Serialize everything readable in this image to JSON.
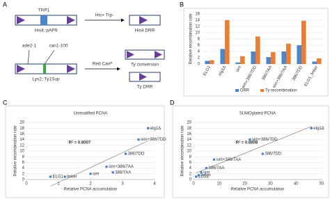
{
  "panel_labels": [
    "A",
    "B",
    "C",
    "D"
  ],
  "diagram": {
    "trp1": "TRP1",
    "his_arrow": "His+ Trp-",
    "his_construct": "His4::pAP9",
    "his_product": "His4 DRR",
    "ade": "ade2-1",
    "can": "can1-100",
    "red_arrow": "Red Canᴿ",
    "lys_construct": "Lys2::Ty1Sup",
    "ty_conversion": "Ty conversion",
    "ty_drr": "Ty DRR"
  },
  "chart_data": [
    {
      "type": "bar",
      "y_label": "Relative recombination rate",
      "categories": [
        "ELG1",
        "elg1Δ",
        "sim",
        "sim+386/7DD",
        "386/7AA",
        "sim+386/7AA",
        "386/7DD",
        "ELG1_linker"
      ],
      "series": [
        {
          "name": "DRR",
          "color": "#4a86c8",
          "values": [
            1,
            4.8,
            0.5,
            4,
            2.2,
            4,
            6,
            0.8
          ]
        },
        {
          "name": "Ty recombination",
          "color": "#ed7d31",
          "values": [
            1.2,
            14,
            2.5,
            8.8,
            3.8,
            6.5,
            13.8,
            1.8
          ]
        }
      ],
      "ylim": [
        0,
        16
      ],
      "yticks": [
        0,
        2,
        4,
        6,
        8,
        10,
        12,
        14,
        16
      ],
      "grid": true,
      "legend": "bottom"
    },
    {
      "type": "scatter",
      "title": "Unmodified PCNA",
      "annotation": "R² = 0.8007",
      "x_label": "Relative PCNA accumulation",
      "y_label": "Relative recombination rate",
      "color": "#4a86c8",
      "x": [
        3.8,
        3.5,
        3.1,
        2.5,
        2.7,
        2.0,
        0.75,
        1.2
      ],
      "values": [
        18,
        14,
        9,
        4.5,
        2.5,
        2,
        1,
        1
      ],
      "labels": [
        "elg1Δ",
        "sim+386/7DD",
        "386/7DD",
        "sim+386/7AA",
        "386/7AA",
        "sim",
        "ELG1",
        "linker"
      ],
      "xlim": [
        0,
        4
      ],
      "xticks": [
        0,
        1,
        2,
        3,
        4
      ],
      "ylim": [
        0,
        20
      ],
      "yticks": [
        0,
        2,
        4,
        6,
        8,
        10,
        12,
        14,
        16,
        18,
        20
      ],
      "grid": true
    },
    {
      "type": "scatter",
      "title": "SUMOylated PCNA",
      "annotation": "R² = 0.8808",
      "x_label": "Relative PCNA accumulation",
      "y_label": "Relative recombination rate",
      "color": "#4a86c8",
      "x": [
        46,
        22,
        27,
        8,
        5,
        3,
        1,
        2
      ],
      "values": [
        18,
        14,
        9,
        7,
        4,
        2.5,
        1,
        1.5
      ],
      "labels": [
        "elg1Δ",
        "sim+386/7DD",
        "386/7DD",
        "sim+386/7AA",
        "386/7AA",
        "sim",
        "ELG1",
        "linker"
      ],
      "xlim": [
        0,
        50
      ],
      "xticks": [
        0,
        10,
        20,
        30,
        40,
        50
      ],
      "ylim": [
        0,
        20
      ],
      "yticks": [
        0,
        2,
        4,
        6,
        8,
        10,
        12,
        14,
        16,
        18,
        20
      ],
      "grid": true
    }
  ]
}
